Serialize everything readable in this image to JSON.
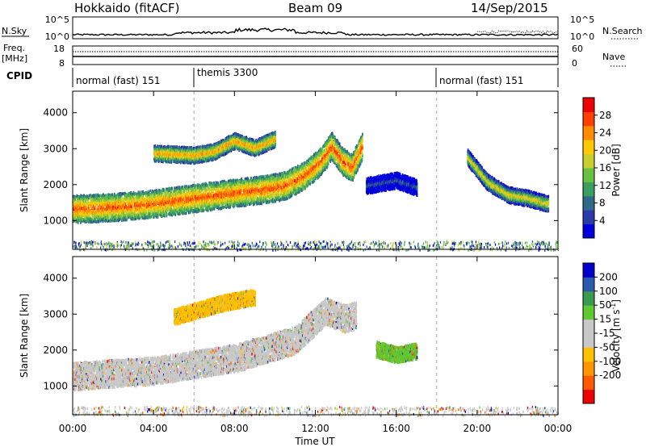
{
  "header": {
    "station": "Hokkaido (fitACF)",
    "beam": "Beam 09",
    "date": "14/Sep/2015"
  },
  "nsky_panel": {
    "left_label": "N.Sky",
    "right_label": "N.Search",
    "left_ticks": [
      "10^5",
      "10^0"
    ],
    "right_ticks": [
      "10^5",
      "10^0"
    ]
  },
  "freq_panel": {
    "left_label_top": "Freq.",
    "left_label_unit": "[MHz]",
    "right_label": "Nave",
    "left_ticks": [
      "18",
      "8"
    ],
    "right_ticks": [
      "60",
      "0"
    ]
  },
  "cpid": {
    "label": "CPID",
    "segments": [
      {
        "name": "normal (fast) 151",
        "start_hr": 0,
        "end_hr": 6
      },
      {
        "name": "themis 3300",
        "start_hr": 6,
        "end_hr": 18
      },
      {
        "name": "normal (fast) 151",
        "start_hr": 18,
        "end_hr": 24
      }
    ]
  },
  "x_axis": {
    "label": "Time UT",
    "range_hr": [
      0,
      24
    ],
    "ticks": [
      {
        "hr": 0,
        "label": "00:00"
      },
      {
        "hr": 4,
        "label": "04:00"
      },
      {
        "hr": 8,
        "label": "08:00"
      },
      {
        "hr": 12,
        "label": "12:00"
      },
      {
        "hr": 16,
        "label": "16:00"
      },
      {
        "hr": 20,
        "label": "20:00"
      },
      {
        "hr": 24,
        "label": "00:00"
      }
    ]
  },
  "chart_data": [
    {
      "type": "heatmap",
      "title": "Power",
      "xlabel": "Time UT",
      "ylabel": "Slant Range [km]",
      "xlim": [
        0,
        24
      ],
      "ylim": [
        200,
        4600
      ],
      "yticks": [
        1000,
        2000,
        3000,
        4000
      ],
      "colorbar": {
        "label": "Power [dB]",
        "ticks": [
          4,
          8,
          12,
          16,
          20,
          24,
          28
        ],
        "range": [
          0,
          32
        ],
        "colors": [
          "#0000dd",
          "#2a3aa8",
          "#2e6a8a",
          "#3aa060",
          "#6ac040",
          "#c8d030",
          "#ffc800",
          "#ff8c00",
          "#ff4000",
          "#ee0000"
        ]
      },
      "features": [
        {
          "t": [
            0.0,
            2.0,
            4.0,
            6.0,
            8.0,
            9.5,
            10.5,
            11.5,
            12.3,
            12.8,
            13.3,
            13.8,
            14.3
          ],
          "range_km": [
            1350,
            1400,
            1500,
            1650,
            1800,
            1900,
            2000,
            2300,
            2700,
            3100,
            2700,
            2500,
            3100
          ],
          "level_db": 28
        },
        {
          "t": [
            4.0,
            6.0,
            7.0,
            8.0,
            9.0,
            10.0
          ],
          "range_km": [
            2900,
            2850,
            2950,
            3250,
            3050,
            3300
          ],
          "level_db": 24
        },
        {
          "t": [
            19.5,
            20.5,
            21.5,
            22.5,
            23.5
          ],
          "range_km": [
            2800,
            2100,
            1750,
            1650,
            1500
          ],
          "level_db": 20
        },
        {
          "t": [
            14.5,
            16.0,
            17.0
          ],
          "range_km": [
            2000,
            2150,
            1950
          ],
          "level_db": 8
        }
      ]
    },
    {
      "type": "heatmap",
      "title": "Velocity",
      "xlabel": "Time UT",
      "ylabel": "Slant Range [km]",
      "xlim": [
        0,
        24
      ],
      "ylim": [
        200,
        4600
      ],
      "yticks": [
        1000,
        2000,
        3000,
        4000
      ],
      "colorbar": {
        "label": "Velocity [m s^-1]",
        "ticks": [
          200,
          100,
          50,
          15,
          -15,
          -50,
          -100,
          -200
        ],
        "range": [
          -250,
          250
        ],
        "colors": [
          "#ee0000",
          "#ff5a00",
          "#ff9600",
          "#ffc000",
          "#c8c8c8",
          "#c8c8c8",
          "#60c830",
          "#3a9a50",
          "#2a5ab0",
          "#0000cc"
        ]
      },
      "features": [
        {
          "t": [
            0.0,
            4.0,
            8.0,
            11.0,
            12.5,
            13.5,
            14.0
          ],
          "range_km": [
            1300,
            1450,
            1800,
            2300,
            3100,
            2900,
            3000
          ],
          "velocity_ms": 0
        },
        {
          "t": [
            5.0,
            7.5,
            9.0
          ],
          "range_km": [
            2950,
            3350,
            3500
          ],
          "velocity_ms": -60
        },
        {
          "t": [
            15.0,
            16.0,
            17.0
          ],
          "range_km": [
            2050,
            1900,
            2000
          ],
          "velocity_ms": 60
        }
      ]
    }
  ],
  "labels": {
    "time_ut": "Time UT",
    "slant_range": "Slant Range [km]",
    "power_cb": "Power [dB]",
    "velocity_cb_main": "Velocity [m s",
    "velocity_cb_sup": "-1",
    "velocity_cb_close": "]"
  }
}
